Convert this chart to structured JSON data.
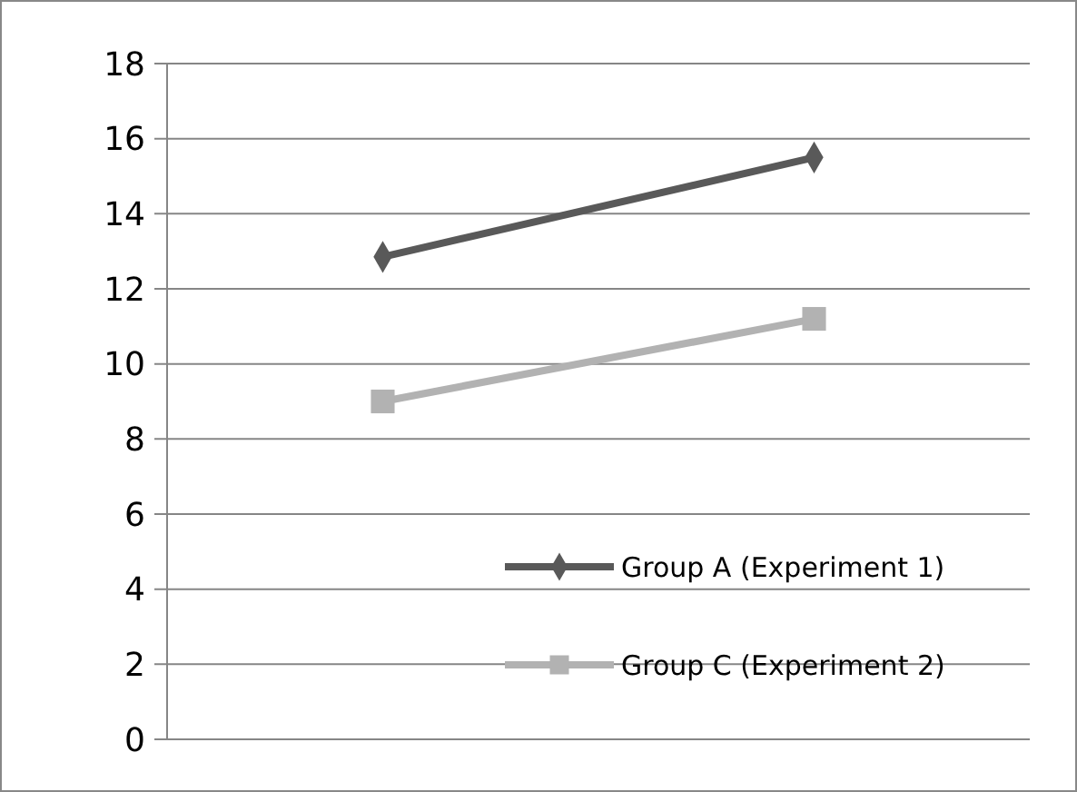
{
  "chart_data": {
    "type": "line",
    "categories": [
      null,
      null
    ],
    "series": [
      {
        "name": "Group A (Experiment 1)",
        "color": "#595959",
        "marker": "diamond",
        "values": [
          12.85,
          15.5
        ]
      },
      {
        "name": "Group C (Experiment 2)",
        "color": "#b2b2b2",
        "marker": "square",
        "values": [
          9.0,
          11.2
        ]
      }
    ],
    "ylim": [
      0,
      18
    ],
    "yticks": [
      0,
      2,
      4,
      6,
      8,
      10,
      12,
      14,
      16,
      18
    ],
    "grid": "y",
    "legend": "bottom right",
    "line_style": "solid"
  }
}
